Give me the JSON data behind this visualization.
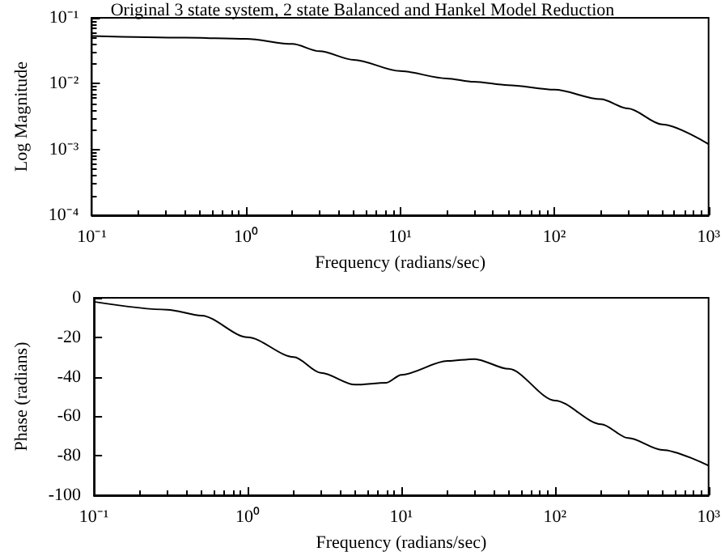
{
  "chart_data": [
    {
      "type": "line",
      "title": "Original 3 state system, 2 state Balanced and Hankel Model Reduction",
      "xlabel": "Frequency (radians/sec)",
      "ylabel": "Log Magnitude",
      "log": "xy",
      "grid": false,
      "marker": "none",
      "line_style": "solid",
      "x": [
        0.1,
        0.4,
        1,
        2,
        3,
        5,
        10,
        20,
        30,
        50,
        100,
        200,
        300,
        500,
        1000
      ],
      "series": [
        {
          "color": "#000000",
          "values": [
            0.053,
            0.05,
            0.048,
            0.04,
            0.031,
            0.023,
            0.0155,
            0.012,
            0.0107,
            0.0095,
            0.0081,
            0.0058,
            0.0042,
            0.0024,
            0.0012
          ]
        }
      ],
      "xlim": [
        0.1,
        1000
      ],
      "ylim": [
        0.0001,
        0.1
      ],
      "xticks": [
        {
          "value": 0.1,
          "label": "10⁻¹"
        },
        {
          "value": 1,
          "label": "10⁰"
        },
        {
          "value": 10,
          "label": "10¹"
        },
        {
          "value": 100,
          "label": "10²"
        },
        {
          "value": 1000,
          "label": "10³"
        }
      ],
      "yticks": [
        {
          "value": 0.0001,
          "label": "10⁻⁴"
        },
        {
          "value": 0.001,
          "label": "10⁻³"
        },
        {
          "value": 0.01,
          "label": "10⁻²"
        },
        {
          "value": 0.1,
          "label": "10⁻¹"
        }
      ]
    },
    {
      "type": "line",
      "xlabel": "Frequency (radians/sec)",
      "ylabel": "Phase (radians)",
      "log": "x",
      "grid": false,
      "marker": "none",
      "line_style": "solid",
      "x": [
        0.1,
        0.3,
        0.5,
        1,
        2,
        3,
        5,
        8,
        10,
        20,
        30,
        50,
        100,
        200,
        300,
        500,
        1000
      ],
      "series": [
        {
          "color": "#000000",
          "values": [
            -2,
            -6,
            -9,
            -20,
            -30,
            -38,
            -44,
            -43,
            -39,
            -32,
            -31,
            -36,
            -52,
            -64,
            -71,
            -77,
            -85
          ]
        }
      ],
      "xlim": [
        0.1,
        1000
      ],
      "ylim": [
        -100,
        0
      ],
      "xticks": [
        {
          "value": 0.1,
          "label": "10⁻¹"
        },
        {
          "value": 1,
          "label": "10⁰"
        },
        {
          "value": 10,
          "label": "10¹"
        },
        {
          "value": 100,
          "label": "10²"
        },
        {
          "value": 1000,
          "label": "10³"
        }
      ],
      "yticks": [
        -100,
        -80,
        -60,
        -40,
        -20,
        0
      ]
    }
  ]
}
